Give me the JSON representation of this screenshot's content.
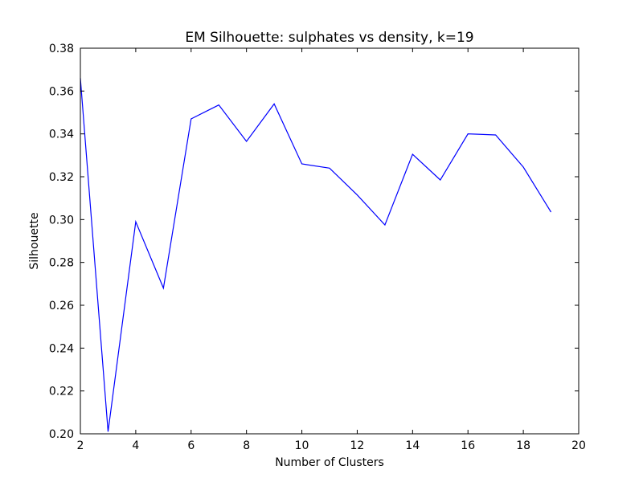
{
  "chart_data": {
    "type": "line",
    "title": "EM Silhouette: sulphates vs density, k=19",
    "xlabel": "Number of Clusters",
    "ylabel": "Silhouette",
    "xlim": [
      2,
      20
    ],
    "ylim": [
      0.2,
      0.38
    ],
    "xticks": [
      "2",
      "4",
      "6",
      "8",
      "10",
      "12",
      "14",
      "16",
      "18",
      "20"
    ],
    "yticks": [
      "0.20",
      "0.22",
      "0.24",
      "0.26",
      "0.28",
      "0.30",
      "0.32",
      "0.34",
      "0.36",
      "0.38"
    ],
    "grid": false,
    "series": [
      {
        "color": "#0000ff",
        "x": [
          2,
          3,
          4,
          5,
          6,
          7,
          8,
          9,
          10,
          11,
          12,
          13,
          14,
          15,
          16,
          17,
          18,
          19
        ],
        "values": [
          0.366,
          0.201,
          0.299,
          0.268,
          0.347,
          0.3535,
          0.3365,
          0.354,
          0.326,
          0.324,
          0.3115,
          0.2975,
          0.3305,
          0.3185,
          0.34,
          0.3395,
          0.3245,
          0.3035
        ]
      }
    ]
  }
}
